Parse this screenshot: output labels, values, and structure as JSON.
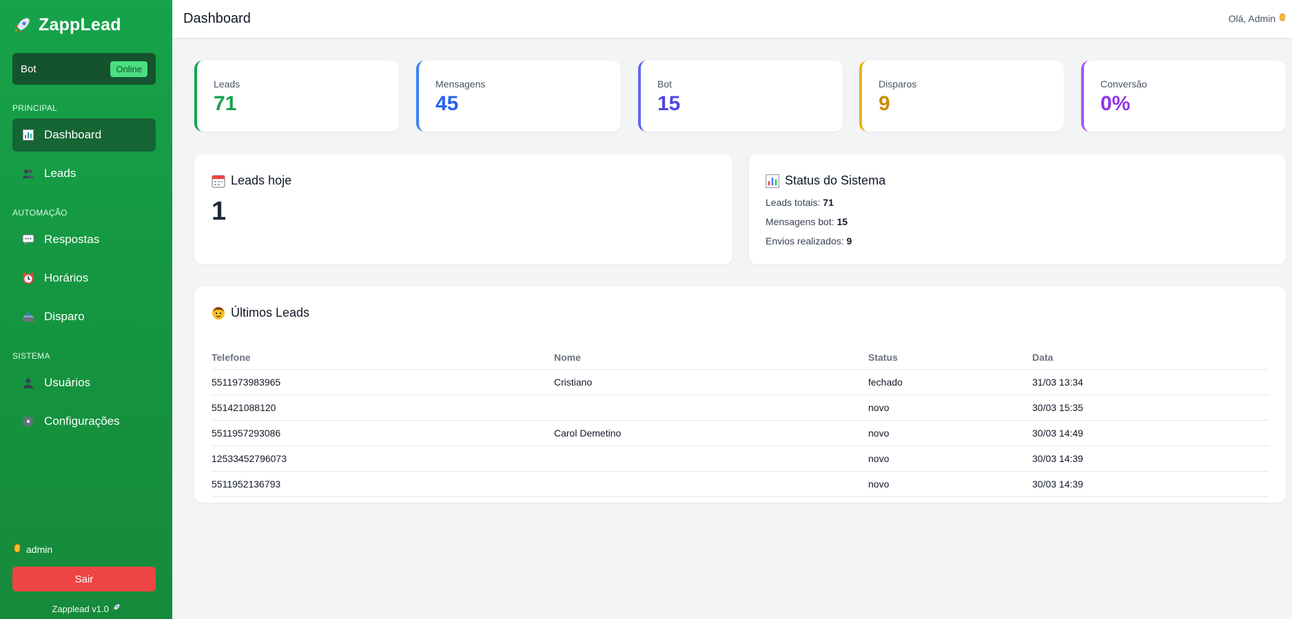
{
  "sidebar": {
    "brand": "ZappLead",
    "bot": {
      "label": "Bot",
      "status": "Online"
    },
    "sections": {
      "principal": "PRINCIPAL",
      "automacao": "AUTOMAÇÃO",
      "sistema": "SISTEMA"
    },
    "items": [
      {
        "label": "Dashboard",
        "icon": "bar-chart-icon"
      },
      {
        "label": "Leads",
        "icon": "users-icon"
      },
      {
        "label": "Respostas",
        "icon": "speech-bubble-icon"
      },
      {
        "label": "Horários",
        "icon": "alarm-clock-icon"
      },
      {
        "label": "Disparo",
        "icon": "outbox-icon"
      },
      {
        "label": "Usuários",
        "icon": "user-icon"
      },
      {
        "label": "Configurações",
        "icon": "gear-icon"
      }
    ],
    "user": "admin",
    "logout": "Sair",
    "version": "Zapplead v1.0"
  },
  "header": {
    "title": "Dashboard",
    "greeting": "Olá, Admin"
  },
  "stats": [
    {
      "label": "Leads",
      "value": "71",
      "color": "#16a34a"
    },
    {
      "label": "Mensagens",
      "value": "45",
      "color": "#2563eb"
    },
    {
      "label": "Bot",
      "value": "15",
      "color": "#4f46e5"
    },
    {
      "label": "Disparos",
      "value": "9",
      "color": "#ca8a04"
    },
    {
      "label": "Conversão",
      "value": "0%",
      "color": "#9333ea"
    }
  ],
  "leads_today": {
    "title": "Leads hoje",
    "value": "1"
  },
  "system_status": {
    "title": "Status do Sistema",
    "lines": [
      {
        "label": "Leads totais:",
        "value": "71"
      },
      {
        "label": "Mensagens bot:",
        "value": "15"
      },
      {
        "label": "Envios realizados:",
        "value": "9"
      }
    ]
  },
  "latest_leads": {
    "title": "Últimos Leads",
    "columns": [
      "Telefone",
      "Nome",
      "Status",
      "Data"
    ],
    "rows": [
      {
        "phone": "5511973983965",
        "name": "Cristiano",
        "status": "fechado",
        "date": "31/03 13:34"
      },
      {
        "phone": "551421088120",
        "name": "",
        "status": "novo",
        "date": "30/03 15:35"
      },
      {
        "phone": "5511957293086",
        "name": "Carol Demetino",
        "status": "novo",
        "date": "30/03 14:49"
      },
      {
        "phone": "12533452796073",
        "name": "",
        "status": "novo",
        "date": "30/03 14:39"
      },
      {
        "phone": "5511952136793",
        "name": "",
        "status": "novo",
        "date": "30/03 14:39"
      }
    ]
  }
}
